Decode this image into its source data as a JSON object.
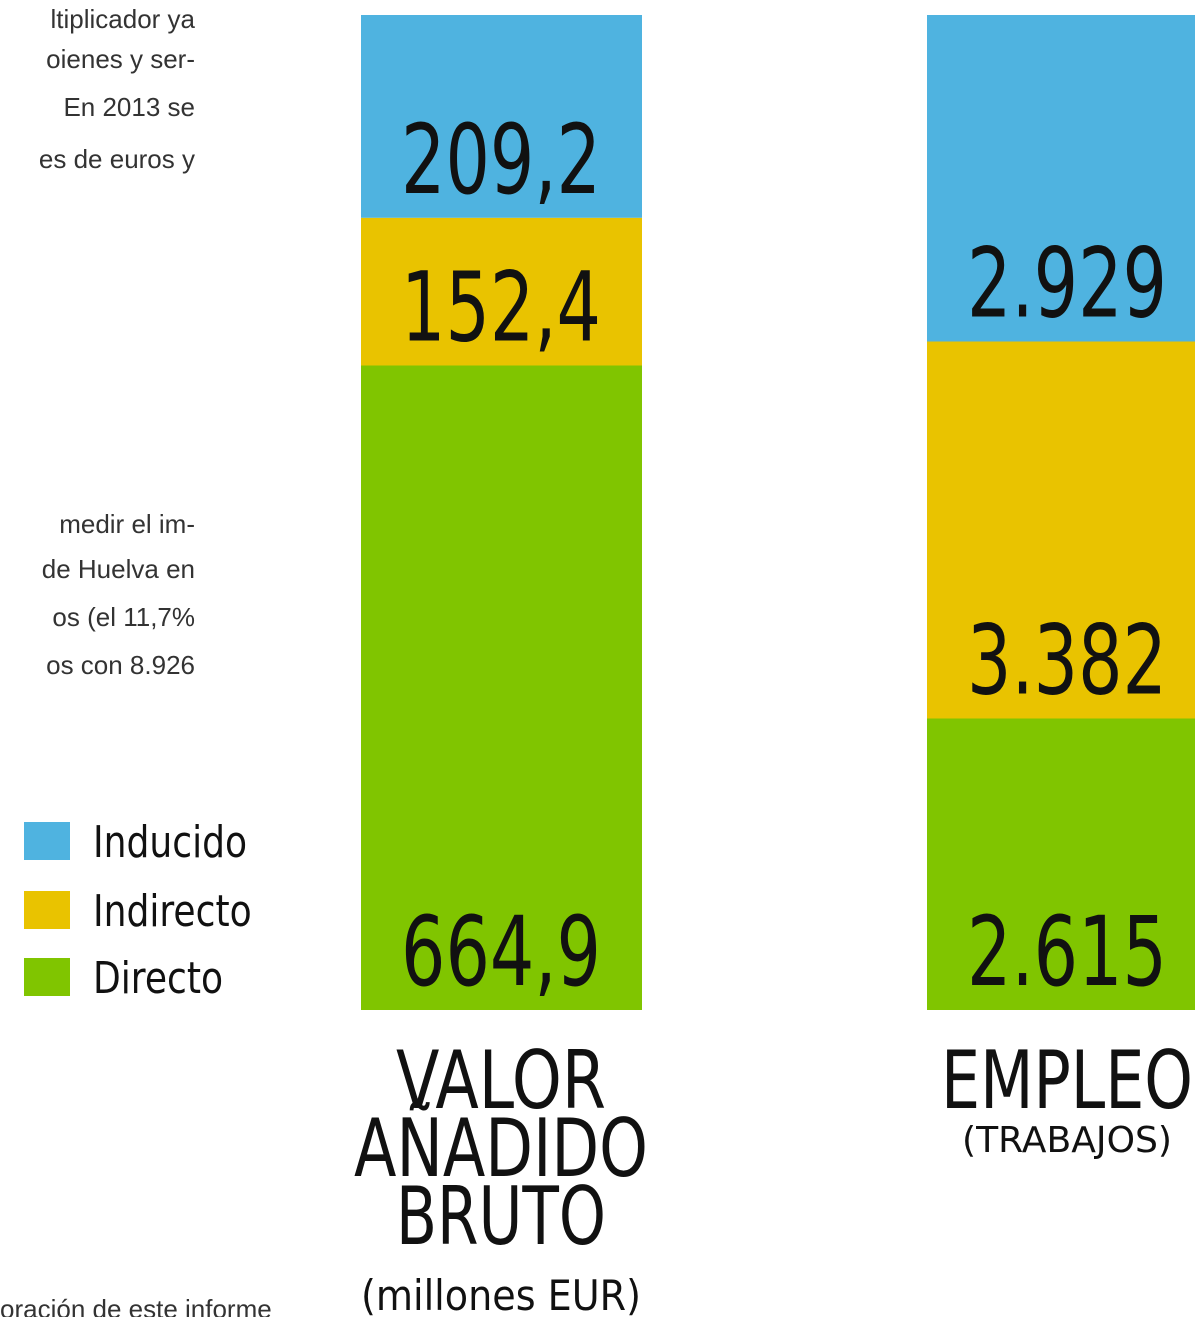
{
  "text": {
    "top_lines": [
      "ltiplicador ya",
      "oienes y ser-",
      "En 2013 se",
      "es de euros y"
    ],
    "middle_lines": [
      "medir el im-",
      "de Huelva en",
      "os (el 11,7%",
      "os con 8.926"
    ],
    "footer": "oración de este informe"
  },
  "chart_data": [
    {
      "type": "bar",
      "stacked": true,
      "title": [
        "VALOR",
        "AÑADIDO",
        "BRUTO"
      ],
      "subtitle": "(millones EUR)",
      "ylim": [
        0,
        1026.5
      ],
      "series": [
        {
          "name": "Inducido",
          "color": "#4fb3e0",
          "values": [
            209.2
          ],
          "value_labels": [
            "209,2"
          ]
        },
        {
          "name": "Indirecto",
          "color": "#e9c300",
          "values": [
            152.4
          ],
          "value_labels": [
            "152,4"
          ]
        },
        {
          "name": "Directo",
          "color": "#80c500",
          "values": [
            664.9
          ],
          "value_labels": [
            "664,9"
          ]
        }
      ]
    },
    {
      "type": "bar",
      "stacked": true,
      "title": [
        "EMPLEO"
      ],
      "subtitle": "(TRABAJOS)",
      "ylim": [
        0,
        8926
      ],
      "series": [
        {
          "color": "#4fb3e0",
          "values": [
            2929
          ],
          "value_labels": [
            "2.929"
          ]
        },
        {
          "color": "#e9c300",
          "values": [
            3382
          ],
          "value_labels": [
            "3.382"
          ]
        },
        {
          "color": "#80c500",
          "values": [
            2615
          ],
          "value_labels": [
            "2.615"
          ]
        }
      ]
    }
  ]
}
